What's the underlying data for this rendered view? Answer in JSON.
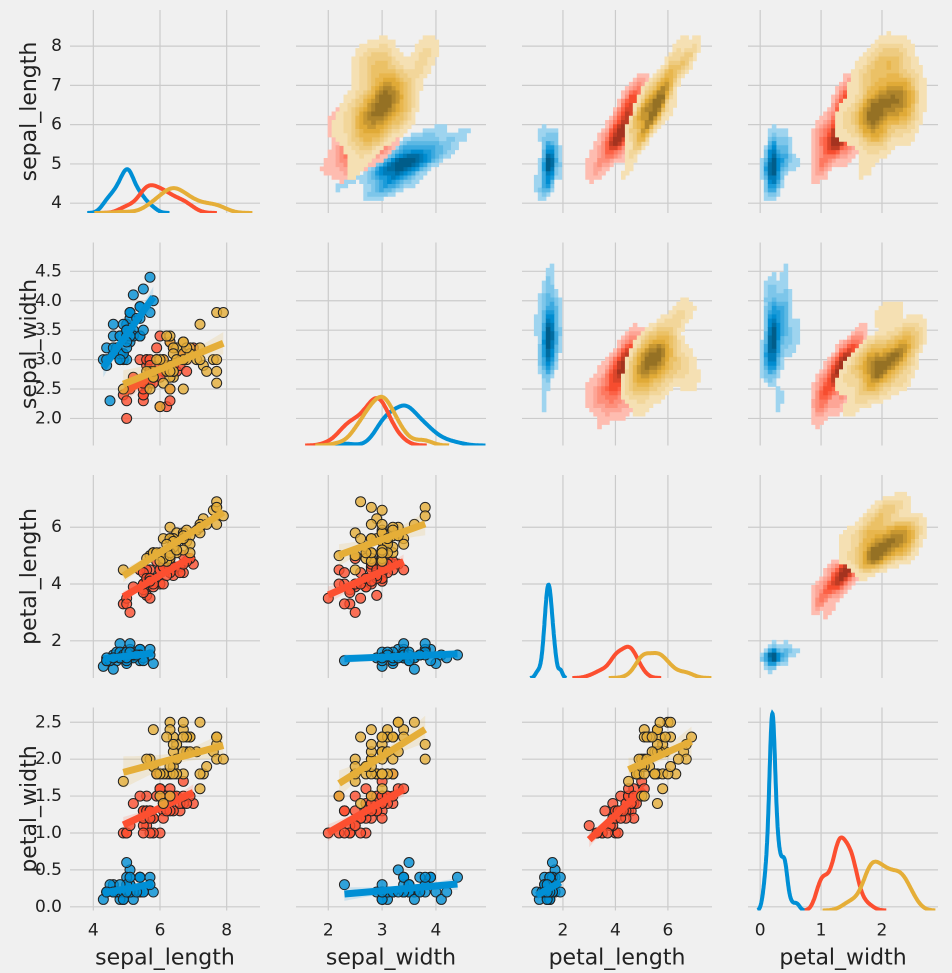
{
  "chart_data": {
    "type": "pairplot",
    "variables": [
      "sepal_length",
      "sepal_width",
      "petal_length",
      "petal_width"
    ],
    "series": [
      {
        "color": "#008fd5",
        "values": [
          [
            5.1,
            4.9,
            4.7,
            4.6,
            5.0,
            5.4,
            4.6,
            5.0,
            4.4,
            4.9,
            5.4,
            4.8,
            4.8,
            4.3,
            5.8,
            5.7,
            5.4,
            5.1,
            5.7,
            5.1,
            5.4,
            5.1,
            4.6,
            5.1,
            4.8,
            5.0,
            5.0,
            5.2,
            5.2,
            4.7,
            4.8,
            5.4,
            5.2,
            5.5,
            4.9,
            5.0,
            5.5,
            4.9,
            4.4,
            5.1,
            5.0,
            4.5,
            4.4,
            5.0,
            5.1,
            4.8,
            5.1,
            4.6,
            5.3,
            5.0
          ],
          [
            3.5,
            3.0,
            3.2,
            3.1,
            3.6,
            3.9,
            3.4,
            3.4,
            2.9,
            3.1,
            3.7,
            3.4,
            3.0,
            3.0,
            4.0,
            4.4,
            3.9,
            3.5,
            3.8,
            3.8,
            3.4,
            3.7,
            3.6,
            3.3,
            3.4,
            3.0,
            3.4,
            3.5,
            3.4,
            3.2,
            3.1,
            3.4,
            4.1,
            4.2,
            3.1,
            3.2,
            3.5,
            3.6,
            3.0,
            3.4,
            3.5,
            2.3,
            3.2,
            3.5,
            3.8,
            3.0,
            3.8,
            3.2,
            3.7,
            3.3
          ],
          [
            1.4,
            1.4,
            1.3,
            1.5,
            1.4,
            1.7,
            1.4,
            1.5,
            1.4,
            1.5,
            1.5,
            1.6,
            1.4,
            1.1,
            1.2,
            1.5,
            1.3,
            1.4,
            1.7,
            1.5,
            1.7,
            1.5,
            1.0,
            1.7,
            1.9,
            1.6,
            1.6,
            1.5,
            1.4,
            1.6,
            1.6,
            1.5,
            1.5,
            1.4,
            1.5,
            1.2,
            1.3,
            1.4,
            1.3,
            1.5,
            1.3,
            1.3,
            1.3,
            1.6,
            1.9,
            1.4,
            1.6,
            1.4,
            1.5,
            1.4
          ],
          [
            0.2,
            0.2,
            0.2,
            0.2,
            0.2,
            0.4,
            0.3,
            0.2,
            0.2,
            0.1,
            0.2,
            0.2,
            0.1,
            0.1,
            0.2,
            0.4,
            0.4,
            0.3,
            0.3,
            0.3,
            0.2,
            0.4,
            0.2,
            0.5,
            0.2,
            0.2,
            0.4,
            0.2,
            0.2,
            0.2,
            0.2,
            0.4,
            0.1,
            0.2,
            0.2,
            0.2,
            0.2,
            0.1,
            0.2,
            0.2,
            0.3,
            0.3,
            0.2,
            0.6,
            0.4,
            0.3,
            0.2,
            0.2,
            0.2,
            0.2
          ]
        ]
      },
      {
        "color": "#fc4f30",
        "values": [
          [
            7.0,
            6.4,
            6.9,
            5.5,
            6.5,
            5.7,
            6.3,
            4.9,
            6.6,
            5.2,
            5.0,
            5.9,
            6.0,
            6.1,
            5.6,
            6.7,
            5.6,
            5.8,
            6.2,
            5.6,
            5.9,
            6.1,
            6.3,
            6.1,
            6.4,
            6.6,
            6.8,
            6.7,
            6.0,
            5.7,
            5.5,
            5.5,
            5.8,
            6.0,
            5.4,
            6.0,
            6.7,
            6.3,
            5.6,
            5.5,
            5.5,
            6.1,
            5.8,
            5.0,
            5.6,
            5.7,
            5.7,
            6.2,
            5.1,
            5.7
          ],
          [
            3.2,
            3.2,
            3.1,
            2.3,
            2.8,
            2.8,
            3.3,
            2.4,
            2.9,
            2.7,
            2.0,
            3.0,
            2.2,
            2.9,
            2.9,
            3.1,
            3.0,
            2.7,
            2.2,
            2.5,
            3.2,
            2.8,
            2.5,
            2.8,
            2.9,
            3.0,
            2.8,
            3.0,
            2.9,
            2.6,
            2.4,
            2.4,
            2.7,
            2.7,
            3.0,
            3.4,
            3.1,
            2.3,
            3.0,
            2.5,
            2.6,
            3.0,
            2.6,
            2.3,
            2.7,
            3.0,
            2.9,
            2.9,
            2.5,
            2.8
          ],
          [
            4.7,
            4.5,
            4.9,
            4.0,
            4.6,
            4.5,
            4.7,
            3.3,
            4.6,
            3.9,
            3.5,
            4.2,
            4.0,
            4.7,
            3.6,
            4.4,
            4.5,
            4.1,
            4.5,
            3.9,
            4.8,
            4.0,
            4.9,
            4.7,
            4.3,
            4.4,
            4.8,
            5.0,
            4.5,
            3.5,
            3.8,
            3.7,
            3.9,
            5.1,
            4.5,
            4.5,
            4.7,
            4.4,
            4.1,
            4.0,
            4.4,
            4.6,
            4.0,
            3.3,
            4.2,
            4.2,
            4.2,
            4.3,
            3.0,
            4.1
          ],
          [
            1.4,
            1.5,
            1.5,
            1.3,
            1.5,
            1.3,
            1.6,
            1.0,
            1.3,
            1.4,
            1.0,
            1.5,
            1.0,
            1.4,
            1.3,
            1.4,
            1.5,
            1.0,
            1.5,
            1.1,
            1.8,
            1.3,
            1.5,
            1.2,
            1.3,
            1.4,
            1.4,
            1.7,
            1.5,
            1.0,
            1.1,
            1.0,
            1.2,
            1.6,
            1.5,
            1.6,
            1.5,
            1.3,
            1.3,
            1.3,
            1.2,
            1.4,
            1.2,
            1.0,
            1.3,
            1.2,
            1.3,
            1.3,
            1.1,
            1.3
          ]
        ]
      },
      {
        "color": "#e5ae38",
        "values": [
          [
            6.3,
            5.8,
            7.1,
            6.3,
            6.5,
            7.6,
            4.9,
            7.3,
            6.7,
            7.2,
            6.5,
            6.4,
            6.8,
            5.7,
            5.8,
            6.4,
            6.5,
            7.7,
            7.7,
            6.0,
            6.9,
            5.6,
            7.7,
            6.3,
            6.7,
            7.2,
            6.2,
            6.1,
            6.4,
            7.2,
            7.4,
            7.9,
            6.4,
            6.3,
            6.1,
            7.7,
            6.3,
            6.4,
            6.0,
            6.9,
            6.7,
            6.9,
            5.8,
            6.8,
            6.7,
            6.7,
            6.3,
            6.5,
            6.2,
            5.9
          ],
          [
            3.3,
            2.7,
            3.0,
            2.9,
            3.0,
            3.0,
            2.5,
            2.9,
            2.5,
            3.6,
            3.2,
            2.7,
            3.0,
            2.5,
            2.8,
            3.2,
            3.0,
            3.8,
            2.6,
            2.2,
            3.2,
            2.8,
            2.8,
            2.7,
            3.3,
            3.2,
            2.8,
            3.0,
            2.8,
            3.0,
            2.8,
            3.8,
            2.8,
            2.8,
            2.6,
            3.0,
            3.4,
            3.1,
            3.0,
            3.1,
            3.1,
            3.1,
            2.7,
            3.2,
            3.3,
            3.0,
            2.5,
            3.0,
            3.4,
            3.0
          ],
          [
            6.0,
            5.1,
            5.9,
            5.6,
            5.8,
            6.6,
            4.5,
            6.3,
            5.8,
            6.1,
            5.1,
            5.3,
            5.5,
            5.0,
            5.1,
            5.3,
            5.5,
            6.7,
            6.9,
            5.0,
            5.7,
            4.9,
            6.7,
            4.9,
            5.7,
            6.0,
            4.8,
            4.9,
            5.6,
            5.8,
            6.1,
            6.4,
            5.6,
            5.1,
            5.6,
            6.1,
            5.6,
            5.5,
            4.8,
            5.4,
            5.6,
            5.1,
            5.1,
            5.9,
            5.7,
            5.2,
            5.0,
            5.2,
            5.4,
            5.1
          ],
          [
            2.5,
            1.9,
            2.1,
            1.8,
            2.2,
            2.1,
            1.7,
            1.8,
            1.8,
            2.5,
            2.0,
            1.9,
            2.1,
            2.0,
            2.4,
            2.3,
            1.8,
            2.2,
            2.3,
            1.5,
            2.3,
            2.0,
            2.0,
            1.8,
            2.1,
            1.8,
            1.8,
            1.8,
            2.1,
            1.6,
            1.9,
            2.0,
            2.2,
            1.5,
            1.4,
            2.3,
            2.4,
            1.8,
            1.8,
            2.1,
            2.4,
            2.3,
            1.9,
            2.3,
            2.5,
            2.3,
            1.9,
            2.0,
            2.3,
            1.8
          ]
        ]
      }
    ],
    "xlim": [
      [
        3.3,
        9.0
      ],
      [
        1.4,
        4.93
      ],
      [
        0.44,
        7.68
      ],
      [
        -0.2,
        2.92
      ]
    ],
    "ylim": [
      [
        3.75,
        8.92
      ],
      [
        1.54,
        4.99
      ],
      [
        0.69,
        7.84
      ],
      [
        -0.05,
        2.7
      ]
    ],
    "xticks": [
      [
        4,
        6,
        8
      ],
      [
        2,
        3,
        4
      ],
      [
        2,
        4,
        6
      ],
      [
        0,
        1,
        2
      ]
    ],
    "yticks": [
      [
        4,
        5,
        6,
        7,
        8
      ],
      [
        {
          "value": 2,
          "label": "2.0"
        },
        2.5,
        {
          "value": 3,
          "label": "3.0"
        },
        3.5,
        {
          "value": 4,
          "label": "4.0"
        },
        4.5
      ],
      [
        2,
        4,
        6
      ],
      [
        {
          "value": 0,
          "label": "0.0"
        },
        0.5,
        {
          "value": 1,
          "label": "1.0"
        },
        1.5,
        {
          "value": 2,
          "label": "2.0"
        },
        2.5
      ]
    ],
    "grid": true
  }
}
